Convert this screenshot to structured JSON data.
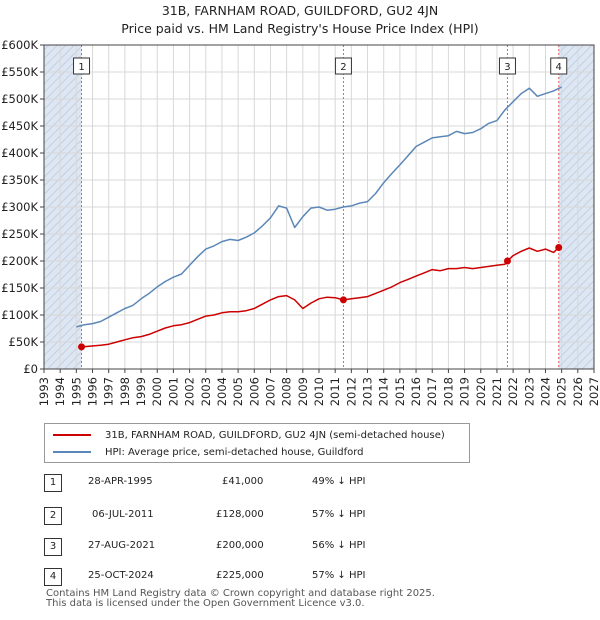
{
  "title_line1": "31B, FARNHAM ROAD, GUILDFORD, GU2 4JN",
  "title_line2": "Price paid vs. HM Land Registry's House Price Index (HPI)",
  "colors": {
    "property": "#cc0000",
    "hpi": "#5b87b8",
    "vline": "#e06060",
    "shade": "#dde6f3"
  },
  "chart_data": {
    "type": "line",
    "title": "Price paid vs. HM Land Registry's House Price Index (HPI)",
    "xlabel": "",
    "ylabel": "",
    "xlim": [
      1993,
      2027
    ],
    "ylim": [
      0,
      600000
    ],
    "grid": true,
    "y_ticks": [
      0,
      50000,
      100000,
      150000,
      200000,
      250000,
      300000,
      350000,
      400000,
      450000,
      500000,
      550000,
      600000
    ],
    "y_tick_labels": [
      "£0",
      "£50K",
      "£100K",
      "£150K",
      "£200K",
      "£250K",
      "£300K",
      "£350K",
      "£400K",
      "£450K",
      "£500K",
      "£550K",
      "£600K"
    ],
    "x_ticks": [
      1993,
      1994,
      1995,
      1996,
      1997,
      1998,
      1999,
      2000,
      2001,
      2002,
      2003,
      2004,
      2005,
      2006,
      2007,
      2008,
      2009,
      2010,
      2011,
      2012,
      2013,
      2014,
      2015,
      2016,
      2017,
      2018,
      2019,
      2020,
      2021,
      2022,
      2023,
      2024,
      2025,
      2026,
      2027
    ],
    "x_tick_labels": [
      "1993",
      "1994",
      "1995",
      "1996",
      "1997",
      "1998",
      "1999",
      "2000",
      "2001",
      "2002",
      "2003",
      "2004",
      "2005",
      "2006",
      "2007",
      "2008",
      "2009",
      "2010",
      "2011",
      "2012",
      "2013",
      "2014",
      "2015",
      "2016",
      "2017",
      "2018",
      "2019",
      "2020",
      "2021",
      "2022",
      "2023",
      "2024",
      "2025",
      "2026",
      "2027"
    ],
    "shaded_ranges": [
      [
        1993,
        1995.32
      ],
      [
        2024.82,
        2027
      ]
    ],
    "series": [
      {
        "name": "HPI: Average price, semi-detached house, Guildford",
        "color": "#5b87b8",
        "x": [
          1995.0,
          1995.5,
          1996.0,
          1996.5,
          1997.0,
          1997.5,
          1998.0,
          1998.5,
          1999.0,
          1999.5,
          2000.0,
          2000.5,
          2001.0,
          2001.5,
          2002.0,
          2002.5,
          2003.0,
          2003.5,
          2004.0,
          2004.5,
          2005.0,
          2005.5,
          2006.0,
          2006.5,
          2007.0,
          2007.5,
          2008.0,
          2008.5,
          2009.0,
          2009.5,
          2010.0,
          2010.5,
          2011.0,
          2011.5,
          2012.0,
          2012.5,
          2013.0,
          2013.5,
          2014.0,
          2014.5,
          2015.0,
          2015.5,
          2016.0,
          2016.5,
          2017.0,
          2017.5,
          2018.0,
          2018.5,
          2019.0,
          2019.5,
          2020.0,
          2020.5,
          2021.0,
          2021.5,
          2022.0,
          2022.5,
          2023.0,
          2023.5,
          2024.0,
          2024.5,
          2025.0
        ],
        "values": [
          78000,
          82000,
          84000,
          88000,
          96000,
          104000,
          112000,
          118000,
          130000,
          140000,
          152000,
          162000,
          170000,
          176000,
          192000,
          208000,
          222000,
          228000,
          236000,
          240000,
          238000,
          244000,
          252000,
          265000,
          280000,
          302000,
          298000,
          262000,
          282000,
          298000,
          300000,
          294000,
          296000,
          300000,
          302000,
          307000,
          310000,
          325000,
          345000,
          362000,
          378000,
          395000,
          412000,
          420000,
          428000,
          430000,
          432000,
          440000,
          436000,
          438000,
          445000,
          455000,
          460000,
          480000,
          495000,
          510000,
          520000,
          505000,
          510000,
          515000,
          522000
        ]
      },
      {
        "name": "31B, FARNHAM ROAD, GUILDFORD, GU2 4JN (semi-detached house)",
        "color": "#cc0000",
        "x": [
          1995.32,
          1995.8,
          1996.5,
          1997.0,
          1997.5,
          1998.0,
          1998.5,
          1999.0,
          1999.5,
          2000.0,
          2000.5,
          2001.0,
          2001.5,
          2002.0,
          2002.5,
          2003.0,
          2003.5,
          2004.0,
          2004.5,
          2005.0,
          2005.5,
          2006.0,
          2006.5,
          2007.0,
          2007.5,
          2008.0,
          2008.5,
          2009.0,
          2009.5,
          2010.0,
          2010.5,
          2011.0,
          2011.51,
          2012.0,
          2012.5,
          2013.0,
          2013.5,
          2014.0,
          2014.5,
          2015.0,
          2015.5,
          2016.0,
          2016.5,
          2017.0,
          2017.5,
          2018.0,
          2018.5,
          2019.0,
          2019.5,
          2020.0,
          2020.5,
          2021.0,
          2021.5,
          2021.65,
          2022.0,
          2022.5,
          2023.0,
          2023.5,
          2024.0,
          2024.5,
          2024.82
        ],
        "values": [
          41000,
          42000,
          44000,
          46000,
          50000,
          54000,
          58000,
          60000,
          64000,
          70000,
          76000,
          80000,
          82000,
          86000,
          92000,
          98000,
          100000,
          104000,
          106000,
          106000,
          108000,
          112000,
          120000,
          128000,
          134000,
          136000,
          128000,
          112000,
          122000,
          130000,
          133000,
          132000,
          128000,
          130000,
          132000,
          134000,
          140000,
          146000,
          152000,
          160000,
          166000,
          172000,
          178000,
          184000,
          182000,
          186000,
          186000,
          188000,
          186000,
          188000,
          190000,
          192000,
          194000,
          200000,
          210000,
          218000,
          224000,
          218000,
          222000,
          216000,
          225000
        ]
      }
    ],
    "annotations": [
      {
        "label": "1",
        "x": 1995.32,
        "y": 41000
      },
      {
        "label": "2",
        "x": 2011.51,
        "y": 128000
      },
      {
        "label": "3",
        "x": 2021.65,
        "y": 200000
      },
      {
        "label": "4",
        "x": 2024.82,
        "y": 225000
      }
    ]
  },
  "legend": {
    "property_label": "31B, FARNHAM ROAD, GUILDFORD, GU2 4JN (semi-detached house)",
    "hpi_label": "HPI: Average price, semi-detached house, Guildford"
  },
  "transactions": [
    {
      "num": "1",
      "date": "28-APR-1995",
      "price": "£41,000",
      "hpi": "49% ↓ HPI"
    },
    {
      "num": "2",
      "date": "06-JUL-2011",
      "price": "£128,000",
      "hpi": "57% ↓ HPI"
    },
    {
      "num": "3",
      "date": "27-AUG-2021",
      "price": "£200,000",
      "hpi": "56% ↓ HPI"
    },
    {
      "num": "4",
      "date": "25-OCT-2024",
      "price": "£225,000",
      "hpi": "57% ↓ HPI"
    }
  ],
  "footer": {
    "line1": "Contains HM Land Registry data © Crown copyright and database right 2025.",
    "line2": "This data is licensed under the Open Government Licence v3.0."
  }
}
